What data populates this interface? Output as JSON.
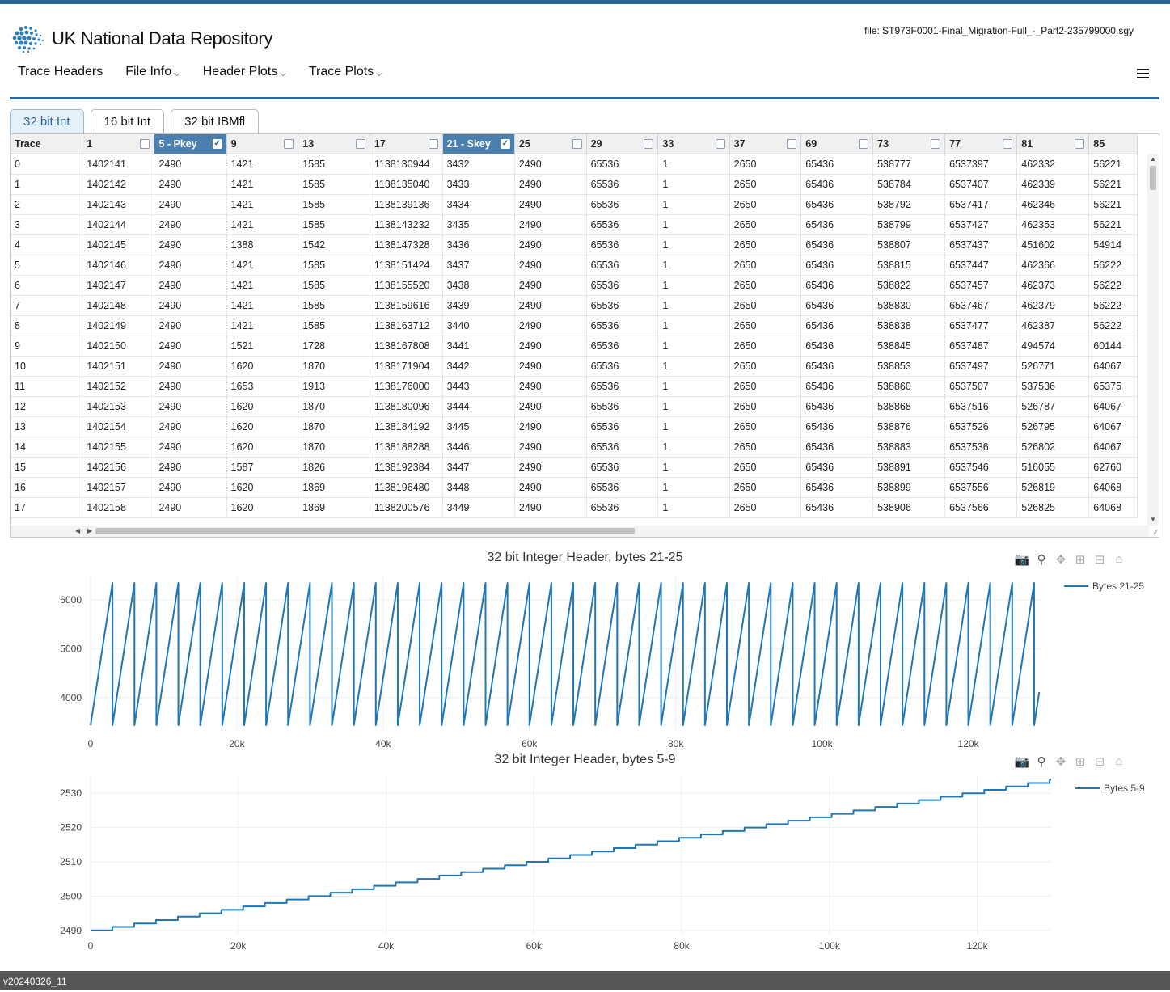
{
  "app": {
    "logo_text": "UK National Data Repository",
    "file_label": "file: ST973F0001-Final_Migration-Full_-_Part2-235799000.sgy"
  },
  "nav": {
    "items": [
      {
        "label": "Trace Headers",
        "dropdown": false
      },
      {
        "label": "File Info",
        "dropdown": true
      },
      {
        "label": "Header Plots",
        "dropdown": true
      },
      {
        "label": "Trace Plots",
        "dropdown": true
      }
    ],
    "menu_icon": "hamburger-icon"
  },
  "tabs": [
    {
      "label": "32 bit Int",
      "active": true
    },
    {
      "label": "16 bit Int",
      "active": false
    },
    {
      "label": "32 bit IBMfl",
      "active": false
    }
  ],
  "table": {
    "columns": [
      {
        "label": "Trace",
        "checkbox": false,
        "selected": false
      },
      {
        "label": "1",
        "checkbox": true,
        "selected": false
      },
      {
        "label": "5 - Pkey",
        "checkbox": true,
        "selected": true
      },
      {
        "label": "9",
        "checkbox": true,
        "selected": false
      },
      {
        "label": "13",
        "checkbox": true,
        "selected": false
      },
      {
        "label": "17",
        "checkbox": true,
        "selected": false
      },
      {
        "label": "21 - Skey",
        "checkbox": true,
        "selected": true
      },
      {
        "label": "25",
        "checkbox": true,
        "selected": false
      },
      {
        "label": "29",
        "checkbox": true,
        "selected": false
      },
      {
        "label": "33",
        "checkbox": true,
        "selected": false
      },
      {
        "label": "37",
        "checkbox": true,
        "selected": false
      },
      {
        "label": "69",
        "checkbox": true,
        "selected": false
      },
      {
        "label": "73",
        "checkbox": true,
        "selected": false
      },
      {
        "label": "77",
        "checkbox": true,
        "selected": false
      },
      {
        "label": "81",
        "checkbox": true,
        "selected": false
      },
      {
        "label": "85",
        "checkbox": false,
        "selected": false
      }
    ],
    "rows": [
      [
        "0",
        "1402141",
        "2490",
        "1421",
        "1585",
        "1138130944",
        "3432",
        "2490",
        "65536",
        "1",
        "2650",
        "65436",
        "538777",
        "6537397",
        "462332",
        "56221"
      ],
      [
        "1",
        "1402142",
        "2490",
        "1421",
        "1585",
        "1138135040",
        "3433",
        "2490",
        "65536",
        "1",
        "2650",
        "65436",
        "538784",
        "6537407",
        "462339",
        "56221"
      ],
      [
        "2",
        "1402143",
        "2490",
        "1421",
        "1585",
        "1138139136",
        "3434",
        "2490",
        "65536",
        "1",
        "2650",
        "65436",
        "538792",
        "6537417",
        "462346",
        "56221"
      ],
      [
        "3",
        "1402144",
        "2490",
        "1421",
        "1585",
        "1138143232",
        "3435",
        "2490",
        "65536",
        "1",
        "2650",
        "65436",
        "538799",
        "6537427",
        "462353",
        "56221"
      ],
      [
        "4",
        "1402145",
        "2490",
        "1388",
        "1542",
        "1138147328",
        "3436",
        "2490",
        "65536",
        "1",
        "2650",
        "65436",
        "538807",
        "6537437",
        "451602",
        "54914"
      ],
      [
        "5",
        "1402146",
        "2490",
        "1421",
        "1585",
        "1138151424",
        "3437",
        "2490",
        "65536",
        "1",
        "2650",
        "65436",
        "538815",
        "6537447",
        "462366",
        "56222"
      ],
      [
        "6",
        "1402147",
        "2490",
        "1421",
        "1585",
        "1138155520",
        "3438",
        "2490",
        "65536",
        "1",
        "2650",
        "65436",
        "538822",
        "6537457",
        "462373",
        "56222"
      ],
      [
        "7",
        "1402148",
        "2490",
        "1421",
        "1585",
        "1138159616",
        "3439",
        "2490",
        "65536",
        "1",
        "2650",
        "65436",
        "538830",
        "6537467",
        "462379",
        "56222"
      ],
      [
        "8",
        "1402149",
        "2490",
        "1421",
        "1585",
        "1138163712",
        "3440",
        "2490",
        "65536",
        "1",
        "2650",
        "65436",
        "538838",
        "6537477",
        "462387",
        "56222"
      ],
      [
        "9",
        "1402150",
        "2490",
        "1521",
        "1728",
        "1138167808",
        "3441",
        "2490",
        "65536",
        "1",
        "2650",
        "65436",
        "538845",
        "6537487",
        "494574",
        "60144"
      ],
      [
        "10",
        "1402151",
        "2490",
        "1620",
        "1870",
        "1138171904",
        "3442",
        "2490",
        "65536",
        "1",
        "2650",
        "65436",
        "538853",
        "6537497",
        "526771",
        "64067"
      ],
      [
        "11",
        "1402152",
        "2490",
        "1653",
        "1913",
        "1138176000",
        "3443",
        "2490",
        "65536",
        "1",
        "2650",
        "65436",
        "538860",
        "6537507",
        "537536",
        "65375"
      ],
      [
        "12",
        "1402153",
        "2490",
        "1620",
        "1870",
        "1138180096",
        "3444",
        "2490",
        "65536",
        "1",
        "2650",
        "65436",
        "538868",
        "6537516",
        "526787",
        "64067"
      ],
      [
        "13",
        "1402154",
        "2490",
        "1620",
        "1870",
        "1138184192",
        "3445",
        "2490",
        "65536",
        "1",
        "2650",
        "65436",
        "538876",
        "6537526",
        "526795",
        "64067"
      ],
      [
        "14",
        "1402155",
        "2490",
        "1620",
        "1870",
        "1138188288",
        "3446",
        "2490",
        "65536",
        "1",
        "2650",
        "65436",
        "538883",
        "6537536",
        "526802",
        "64067"
      ],
      [
        "15",
        "1402156",
        "2490",
        "1587",
        "1826",
        "1138192384",
        "3447",
        "2490",
        "65536",
        "1",
        "2650",
        "65436",
        "538891",
        "6537546",
        "516055",
        "62760"
      ],
      [
        "16",
        "1402157",
        "2490",
        "1620",
        "1869",
        "1138196480",
        "3448",
        "2490",
        "65536",
        "1",
        "2650",
        "65436",
        "538899",
        "6537556",
        "526819",
        "64068"
      ],
      [
        "17",
        "1402158",
        "2490",
        "1620",
        "1869",
        "1138200576",
        "3449",
        "2490",
        "65536",
        "1",
        "2650",
        "65436",
        "538906",
        "6537566",
        "526825",
        "64068"
      ]
    ]
  },
  "plots": {
    "modebar_icons": [
      "camera-icon",
      "zoom-icon",
      "pan-icon",
      "zoom-in-icon",
      "zoom-out-icon",
      "home-icon"
    ]
  },
  "chart_data": [
    {
      "type": "line",
      "title": "32 bit Integer Header, bytes 21-25",
      "series": [
        {
          "name": "Bytes 21-25",
          "color": "#1f77b4"
        }
      ],
      "pattern": "sawtooth",
      "y_min": 3432,
      "y_max": 6350,
      "period": 3000,
      "x_end": 129700,
      "x_ticks": [
        0,
        20000,
        40000,
        60000,
        80000,
        100000,
        120000
      ],
      "x_tick_labels": [
        "0",
        "20k",
        "40k",
        "60k",
        "80k",
        "100k",
        "120k"
      ],
      "y_ticks": [
        4000,
        5000,
        6000
      ],
      "xlim": [
        0,
        130000
      ],
      "ylim": [
        3300,
        6500
      ],
      "grid": true,
      "legend_position": "top-right"
    },
    {
      "type": "line",
      "title": "32 bit Integer Header, bytes 5-9",
      "series": [
        {
          "name": "Bytes 5-9",
          "color": "#1f77b4"
        }
      ],
      "pattern": "staircase",
      "y_start": 2490,
      "y_end": 2534,
      "step_every": 2950,
      "x_end": 130000,
      "x_ticks": [
        0,
        20000,
        40000,
        60000,
        80000,
        100000,
        120000
      ],
      "x_tick_labels": [
        "0",
        "20k",
        "40k",
        "60k",
        "80k",
        "100k",
        "120k"
      ],
      "y_ticks": [
        2490,
        2500,
        2510,
        2520,
        2530
      ],
      "xlim": [
        0,
        130000
      ],
      "ylim": [
        2489,
        2535
      ],
      "grid": true,
      "legend_position": "top-right"
    }
  ],
  "footer": {
    "version": "v20240326_11"
  }
}
